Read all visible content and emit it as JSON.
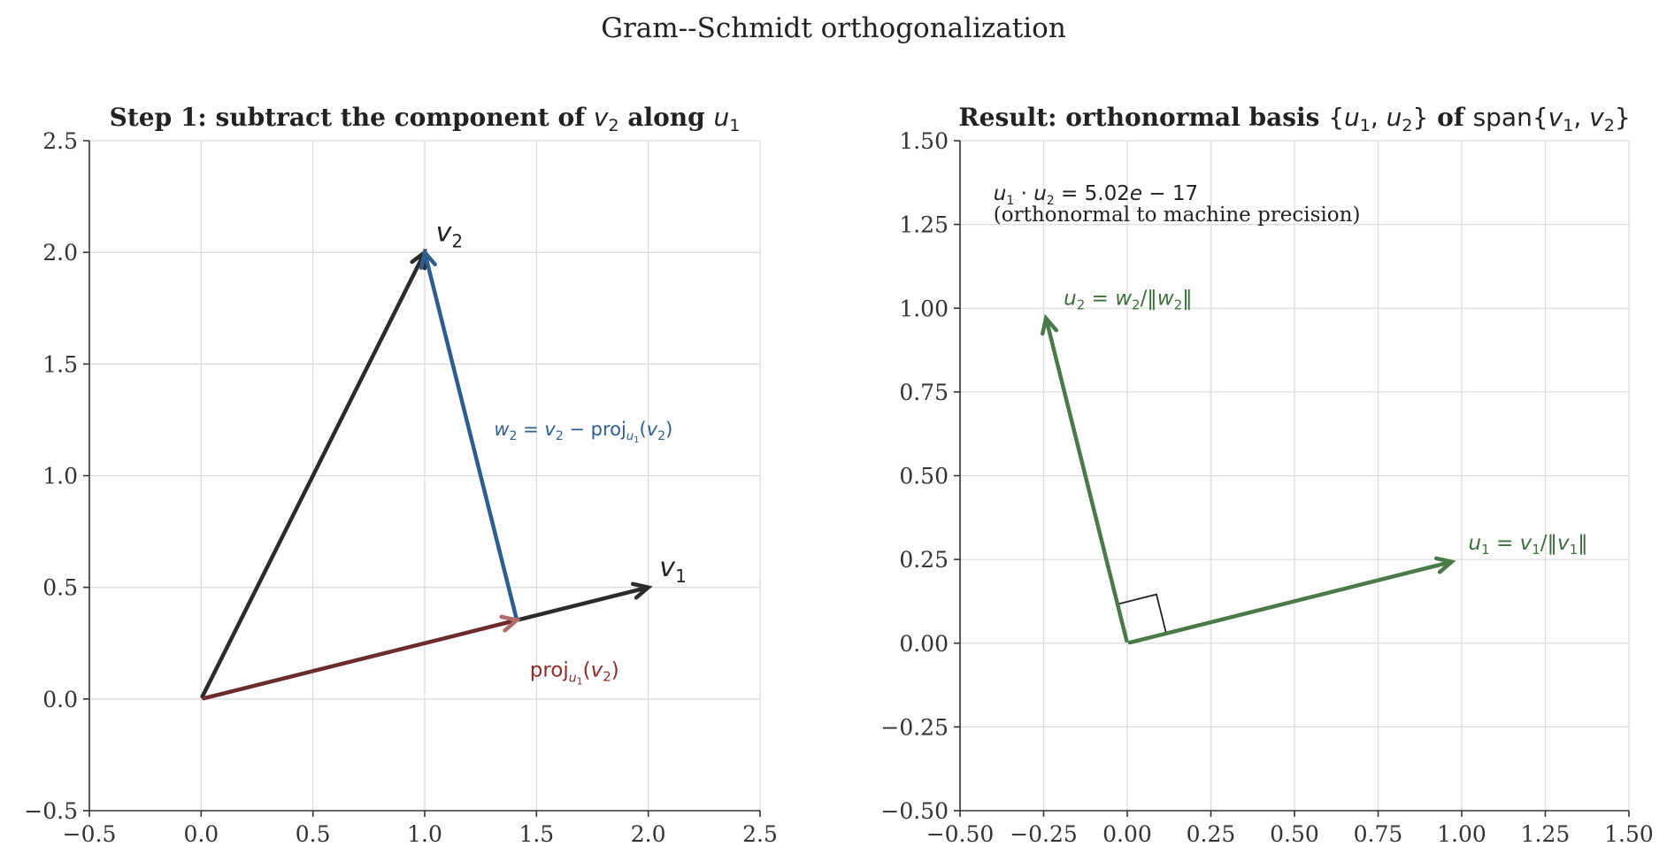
{
  "figure": {
    "title": "Gram--Schmidt orthogonalization"
  },
  "chart_data": [
    {
      "type": "vector",
      "title_html": "Step 1: subtract the component of <tspan font-family=\"DejaVu Sans\" font-weight=\"normal\" font-style=\"italic\">v</tspan><tspan font-family=\"DejaVu Sans\" font-weight=\"normal\" font-size=\"19\" dy=\"6\">2</tspan><tspan dy=\"-6\"> along </tspan><tspan font-family=\"DejaVu Sans\" font-weight=\"normal\" font-style=\"italic\">u</tspan><tspan font-family=\"DejaVu Sans\" font-weight=\"normal\" font-size=\"19\" dy=\"6\">1</tspan>",
      "xlim": [
        -0.5,
        2.5
      ],
      "ylim": [
        -0.5,
        2.5
      ],
      "xticks": [
        -0.5,
        0.0,
        0.5,
        1.0,
        1.5,
        2.0,
        2.5
      ],
      "yticks": [
        -0.5,
        0.0,
        0.5,
        1.0,
        1.5,
        2.0,
        2.5
      ],
      "xtick_labels": [
        "−0.5",
        "0.0",
        "0.5",
        "1.0",
        "1.5",
        "2.0",
        "2.5"
      ],
      "ytick_labels": [
        "−0.5",
        "0.0",
        "0.5",
        "1.0",
        "1.5",
        "2.0",
        "2.5"
      ],
      "grid": true,
      "vectors": [
        {
          "name": "v2",
          "from": [
            0,
            0
          ],
          "to": [
            1.0,
            2.0
          ],
          "color": "#2b2b2b"
        },
        {
          "name": "w2",
          "from": [
            1.412,
            0.353
          ],
          "to": [
            1.0,
            2.0
          ],
          "color": "#2e5e8e"
        },
        {
          "name": "v1",
          "from": [
            1.412,
            0.353
          ],
          "to": [
            2.0,
            0.5
          ],
          "color": "#2b2b2b",
          "no_head": false
        },
        {
          "name": "proj",
          "from": [
            0,
            0
          ],
          "to": [
            1.412,
            0.353
          ],
          "color": "#6e2b2b",
          "head_color": "#b36a6a"
        }
      ],
      "labels": [
        {
          "key": "v2",
          "html": "<tspan font-style=\"italic\">v</tspan><tspan font-size=\"20\" dy=\"7\">2</tspan>",
          "at": [
            1.05,
            2.05
          ],
          "size": 30,
          "color": "#222222"
        },
        {
          "key": "v1",
          "html": "<tspan font-style=\"italic\">v</tspan><tspan font-size=\"20\" dy=\"7\">1</tspan>",
          "at": [
            2.05,
            0.55
          ],
          "size": 30,
          "color": "#222222"
        },
        {
          "key": "w2",
          "html": "<tspan font-style=\"italic\">w</tspan><tspan font-size=\"14\" dy=\"5\">2</tspan><tspan dy=\"-5\"> = </tspan><tspan font-style=\"italic\">v</tspan><tspan font-size=\"14\" dy=\"5\">2</tspan><tspan dy=\"-5\"> − proj</tspan><tspan font-size=\"13\" dy=\"5\" font-style=\"italic\">u</tspan><tspan font-size=\"10\" dy=\"3\">1</tspan><tspan dy=\"-8\">(</tspan><tspan font-style=\"italic\">v</tspan><tspan font-size=\"14\" dy=\"5\">2</tspan><tspan dy=\"-5\">)</tspan>",
          "at": [
            1.31,
            1.18
          ],
          "size": 21,
          "color": "#2e5e8e"
        },
        {
          "key": "proj",
          "html": "<tspan>proj</tspan><tspan font-size=\"14\" dy=\"6\" font-style=\"italic\">u</tspan><tspan font-size=\"11\" dy=\"3\">1</tspan><tspan dy=\"-9\">(</tspan><tspan font-style=\"italic\">v</tspan><tspan font-size=\"15\" dy=\"5\">2</tspan><tspan dy=\"-5\">)</tspan>",
          "at": [
            1.47,
            0.1
          ],
          "size": 23,
          "color": "#8e2b2b"
        }
      ]
    },
    {
      "type": "vector",
      "title_html": "Result: orthonormal basis <tspan font-family=\"DejaVu Sans\" font-weight=\"normal\">{</tspan><tspan font-family=\"DejaVu Sans\" font-weight=\"normal\" font-style=\"italic\">u</tspan><tspan font-family=\"DejaVu Sans\" font-weight=\"normal\" font-size=\"19\" dy=\"6\">1</tspan><tspan font-family=\"DejaVu Sans\" font-weight=\"normal\" dy=\"-6\">, </tspan><tspan font-family=\"DejaVu Sans\" font-weight=\"normal\" font-style=\"italic\">u</tspan><tspan font-family=\"DejaVu Sans\" font-weight=\"normal\" font-size=\"19\" dy=\"6\">2</tspan><tspan font-family=\"DejaVu Sans\" font-weight=\"normal\" dy=\"-6\">}</tspan><tspan> of </tspan><tspan font-family=\"DejaVu Sans\" font-weight=\"normal\">span{</tspan><tspan font-family=\"DejaVu Sans\" font-weight=\"normal\" font-style=\"italic\">v</tspan><tspan font-family=\"DejaVu Sans\" font-weight=\"normal\" font-size=\"19\" dy=\"6\">1</tspan><tspan font-family=\"DejaVu Sans\" font-weight=\"normal\" dy=\"-6\">, </tspan><tspan font-family=\"DejaVu Sans\" font-weight=\"normal\" font-style=\"italic\">v</tspan><tspan font-family=\"DejaVu Sans\" font-weight=\"normal\" font-size=\"19\" dy=\"6\">2</tspan><tspan font-family=\"DejaVu Sans\" font-weight=\"normal\" dy=\"-6\">}</tspan>",
      "xlim": [
        -0.5,
        1.5
      ],
      "ylim": [
        -0.5,
        1.5
      ],
      "xticks": [
        -0.5,
        -0.25,
        0.0,
        0.25,
        0.5,
        0.75,
        1.0,
        1.25,
        1.5
      ],
      "yticks": [
        -0.5,
        -0.25,
        0.0,
        0.25,
        0.5,
        0.75,
        1.0,
        1.25,
        1.5
      ],
      "xtick_labels": [
        "−0.50",
        "−0.25",
        "0.00",
        "0.25",
        "0.50",
        "0.75",
        "1.00",
        "1.25",
        "1.50"
      ],
      "ytick_labels": [
        "−0.50",
        "−0.25",
        "0.00",
        "0.25",
        "0.50",
        "0.75",
        "1.00",
        "1.25",
        "1.50"
      ],
      "grid": true,
      "vectors": [
        {
          "name": "u1",
          "from": [
            0,
            0
          ],
          "to": [
            0.97,
            0.243
          ],
          "color": "#4a7a4a"
        },
        {
          "name": "u2",
          "from": [
            0,
            0
          ],
          "to": [
            -0.243,
            0.97
          ],
          "color": "#4a7a4a"
        }
      ],
      "right_angle": {
        "size": 0.12
      },
      "labels": [
        {
          "key": "u1",
          "html": "<tspan font-style=\"italic\">u</tspan><tspan font-size=\"15\" dy=\"5\">1</tspan><tspan dy=\"-5\"> = </tspan><tspan font-style=\"italic\">v</tspan><tspan font-size=\"15\" dy=\"5\">1</tspan><tspan dy=\"-5\">/‖</tspan><tspan font-style=\"italic\">v</tspan><tspan font-size=\"15\" dy=\"5\">1</tspan><tspan dy=\"-5\">‖</tspan>",
          "at": [
            1.02,
            0.28
          ],
          "size": 23,
          "color": "#3d6e3d"
        },
        {
          "key": "u2",
          "html": "<tspan font-style=\"italic\">u</tspan><tspan font-size=\"15\" dy=\"5\">2</tspan><tspan dy=\"-5\"> = </tspan><tspan font-style=\"italic\">w</tspan><tspan font-size=\"15\" dy=\"5\">2</tspan><tspan dy=\"-5\">/‖</tspan><tspan font-style=\"italic\">w</tspan><tspan font-size=\"15\" dy=\"5\">2</tspan><tspan dy=\"-5\">‖</tspan>",
          "at": [
            -0.19,
            1.01
          ],
          "size": 23,
          "color": "#3d6e3d"
        }
      ],
      "note_line1_html": "<tspan font-family=\"DejaVu Sans\" font-style=\"italic\">u</tspan><tspan font-family=\"DejaVu Sans\" font-size=\"14\" dy=\"5\">1</tspan><tspan font-family=\"DejaVu Sans\" dy=\"-5\"> · </tspan><tspan font-family=\"DejaVu Sans\" font-style=\"italic\">u</tspan><tspan font-family=\"DejaVu Sans\" font-size=\"14\" dy=\"5\">2</tspan><tspan font-family=\"DejaVu Sans\" dy=\"-5\"> = 5.02</tspan><tspan font-family=\"DejaVu Sans\" font-style=\"italic\">e</tspan><tspan font-family=\"DejaVu Sans\"> − 17</tspan>",
      "note_line2": "(orthonormal to machine precision)",
      "note_at": [
        -0.4,
        1.35
      ]
    }
  ]
}
